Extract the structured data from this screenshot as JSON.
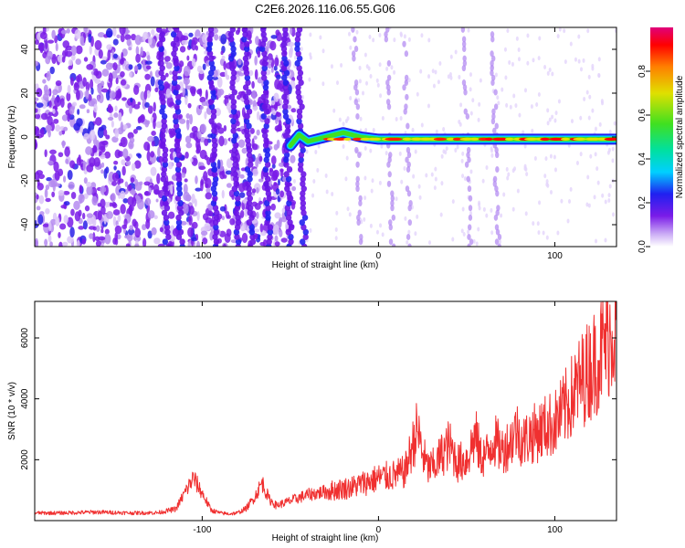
{
  "figure": {
    "title": "C2E6.2026.116.06.55.G06"
  },
  "chart_data": [
    {
      "type": "heatmap",
      "title": "C2E6.2026.116.06.55.G06",
      "xlabel": "Height of straight line (km)",
      "ylabel": "Frequency (Hz)",
      "xlim": [
        -195,
        135
      ],
      "ylim": [
        -50,
        50
      ],
      "xticks": [
        -100,
        0,
        100
      ],
      "yticks": [
        -40,
        -20,
        0,
        20,
        40
      ],
      "colorbar": {
        "label": "Normalized spectral amplitude",
        "range": [
          0,
          1
        ],
        "ticks": [
          0.0,
          0.2,
          0.4,
          0.6,
          0.8
        ],
        "colormap": [
          "#ffffff",
          "#c9a8f5",
          "#7a1ce8",
          "#2020f0",
          "#00d0ff",
          "#00e0a0",
          "#40e020",
          "#e0e000",
          "#ff8000",
          "#ff0000",
          "#e0007a"
        ]
      },
      "noise_band": {
        "x_range": [
          -195,
          -48
        ],
        "f_range": [
          -50,
          50
        ]
      },
      "vertical_streaks_x": [
        -120,
        -112,
        -92,
        -80,
        -72,
        -62,
        -50,
        -42,
        -10,
        8,
        18,
        52,
        68
      ],
      "signal_track": [
        {
          "x": -50,
          "f": -4
        },
        {
          "x": -45,
          "f": 1
        },
        {
          "x": -40,
          "f": -2
        },
        {
          "x": -30,
          "f": 0
        },
        {
          "x": -20,
          "f": 2
        },
        {
          "x": -10,
          "f": 0
        },
        {
          "x": 0,
          "f": -1
        },
        {
          "x": 20,
          "f": -1
        },
        {
          "x": 40,
          "f": -1
        },
        {
          "x": 60,
          "f": -1
        },
        {
          "x": 80,
          "f": -1
        },
        {
          "x": 100,
          "f": -1
        },
        {
          "x": 120,
          "f": -1
        },
        {
          "x": 135,
          "f": -1
        }
      ]
    },
    {
      "type": "line",
      "xlabel": "Height of straight line (km)",
      "ylabel": "SNR (10 * v/v)",
      "xlim": [
        -195,
        135
      ],
      "ylim": [
        0,
        7200
      ],
      "xticks": [
        -100,
        0,
        100
      ],
      "yticks": [
        2000,
        4000,
        6000
      ],
      "color": "#f03030",
      "series": [
        {
          "x": [
            -195,
            -180,
            -160,
            -140,
            -125,
            -115,
            -110,
            -105,
            -100,
            -95,
            -90,
            -85,
            -80,
            -75,
            -70,
            -66,
            -62,
            -58,
            -55,
            -50,
            -45,
            -40,
            -35,
            -30,
            -25,
            -20,
            -15,
            -10,
            -5,
            0,
            5,
            10,
            15,
            18,
            22,
            25,
            28,
            32,
            35,
            40,
            45,
            50,
            55,
            58,
            62,
            65,
            70,
            75,
            78,
            82,
            86,
            90,
            95,
            100,
            105,
            110,
            115,
            120,
            125,
            130,
            133,
            135
          ],
          "y": [
            250,
            250,
            280,
            250,
            260,
            380,
            900,
            1400,
            900,
            350,
            250,
            220,
            250,
            400,
            800,
            1250,
            700,
            500,
            550,
            650,
            750,
            850,
            900,
            950,
            1000,
            1050,
            1100,
            1200,
            1300,
            1400,
            1450,
            1500,
            1600,
            2200,
            3000,
            2200,
            1700,
            1800,
            2100,
            2500,
            1900,
            2000,
            2800,
            2100,
            2200,
            2700,
            2300,
            2600,
            3000,
            2600,
            2800,
            2900,
            3100,
            3200,
            3600,
            4100,
            4600,
            5000,
            5400,
            6000,
            6400,
            6200
          ]
        }
      ]
    }
  ]
}
